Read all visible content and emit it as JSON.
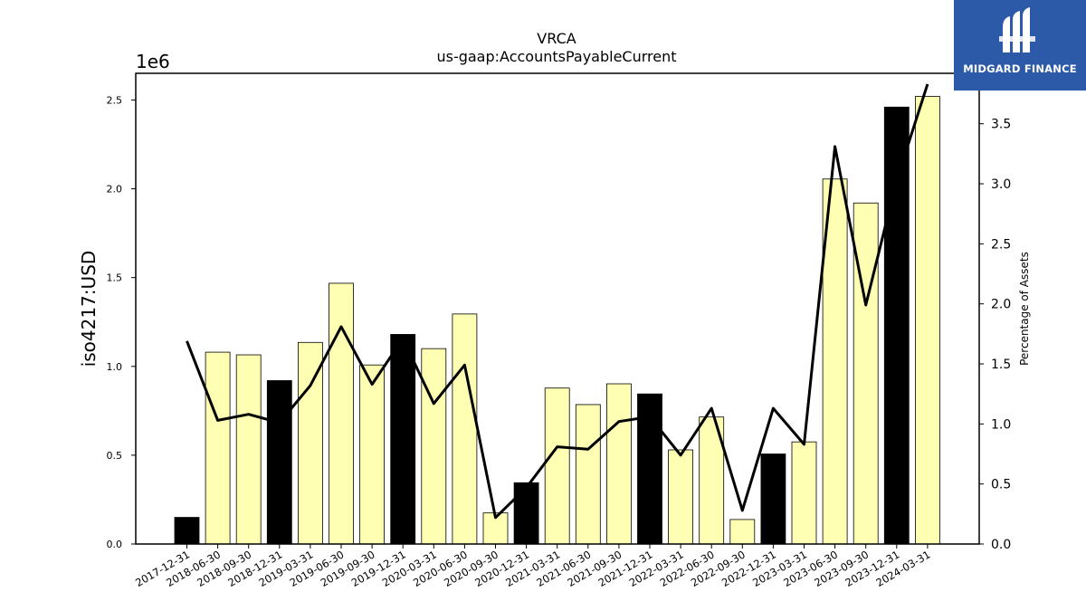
{
  "chart_data": {
    "type": "bar",
    "title": "VRCA",
    "subtitle": "us-gaap:AccountsPayableCurrent",
    "ylabel": "iso4217:USD",
    "ylabel_right": "Percentage of Assets",
    "y_offset_label": "1e6",
    "ylim": [
      0,
      2650000
    ],
    "y2lim": [
      0,
      3.92
    ],
    "yticks": [
      0,
      500000,
      1000000,
      1500000,
      2000000,
      2500000
    ],
    "ytick_labels": [
      "0.0",
      "0.5",
      "1.0",
      "1.5",
      "2.0",
      "2.5"
    ],
    "y2ticks": [
      0,
      0.5,
      1.0,
      1.5,
      2.0,
      2.5,
      3.0,
      3.5
    ],
    "y2tick_labels": [
      "0.0",
      "0.5",
      "1.0",
      "1.5",
      "2.0",
      "2.5",
      "3.0",
      "3.5"
    ],
    "categories": [
      "2017-12-31",
      "2018-06-30",
      "2018-09-30",
      "2018-12-31",
      "2019-03-31",
      "2019-06-30",
      "2019-09-30",
      "2019-12-31",
      "2020-03-31",
      "2020-06-30",
      "2020-09-30",
      "2020-12-31",
      "2021-03-31",
      "2021-06-30",
      "2021-09-30",
      "2021-12-31",
      "2022-03-31",
      "2022-06-30",
      "2022-09-30",
      "2022-12-31",
      "2023-03-31",
      "2023-06-30",
      "2023-09-30",
      "2023-12-31",
      "2024-03-31"
    ],
    "series": [
      {
        "values": [
          150000,
          1080000,
          1065000,
          920000,
          1135000,
          1468000,
          1008000,
          1180000,
          1100000,
          1295000,
          175000,
          345000,
          878000,
          785000,
          902000,
          845000,
          530000,
          715000,
          138000,
          507000,
          575000,
          2055000,
          1920000,
          2460000,
          2520000
        ],
        "bar_colors": [
          "#000000",
          "#ffffb3",
          "#ffffb3",
          "#000000",
          "#ffffb3",
          "#ffffb3",
          "#ffffb3",
          "#000000",
          "#ffffb3",
          "#ffffb3",
          "#ffffb3",
          "#000000",
          "#ffffb3",
          "#ffffb3",
          "#ffffb3",
          "#000000",
          "#ffffb3",
          "#ffffb3",
          "#ffffb3",
          "#000000",
          "#ffffb3",
          "#ffffb3",
          "#ffffb3",
          "#000000",
          "#ffffb3"
        ]
      },
      {
        "axis": "right",
        "values": [
          1.69,
          1.03,
          1.08,
          1.01,
          1.32,
          1.81,
          1.33,
          1.71,
          1.17,
          1.49,
          0.22,
          0.47,
          0.81,
          0.79,
          1.02,
          1.06,
          0.74,
          1.13,
          0.28,
          1.13,
          0.83,
          3.31,
          1.99,
          3.03,
          3.83
        ],
        "color": "#000000"
      }
    ],
    "grid": false
  },
  "logo": {
    "text": "MIDGARD FINANCE",
    "background": "#2d5aa8"
  }
}
